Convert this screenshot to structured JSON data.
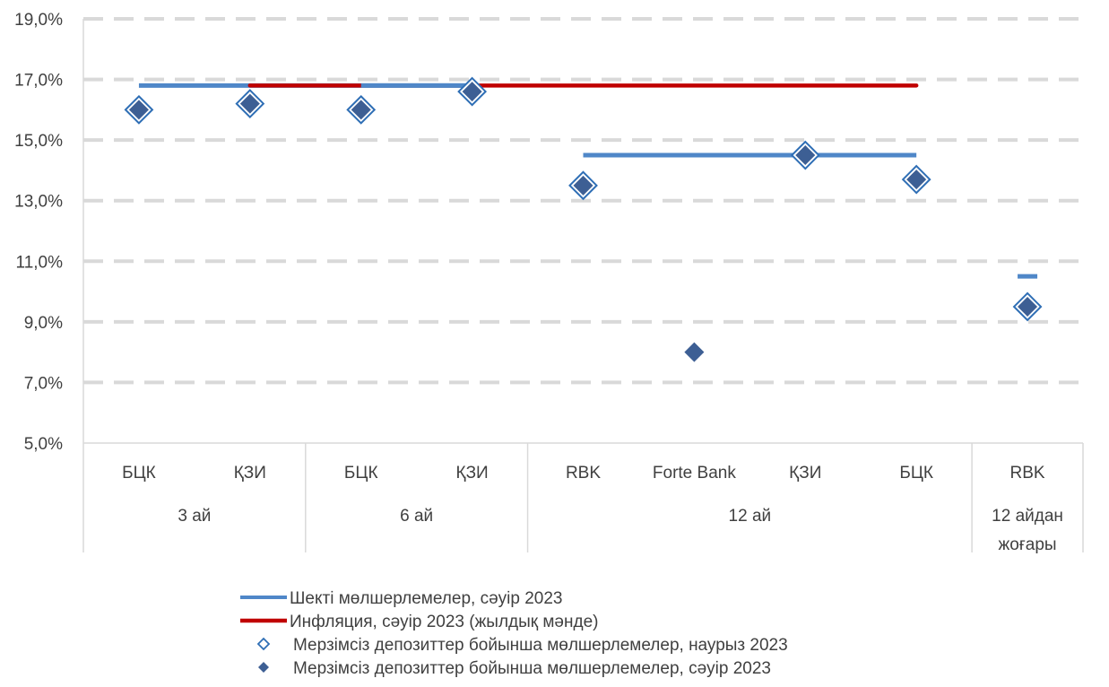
{
  "chart_data": {
    "type": "line",
    "ylim": [
      5,
      19
    ],
    "y_ticks": [
      "5,0%",
      "7,0%",
      "9,0%",
      "11,0%",
      "13,0%",
      "15,0%",
      "17,0%",
      "19,0%"
    ],
    "y_tick_values": [
      5,
      7,
      9,
      11,
      13,
      15,
      17,
      19
    ],
    "categories": [
      "БЦК",
      "ҚЗИ",
      "БЦК",
      "ҚЗИ",
      "RBK",
      "Forte Bank",
      "ҚЗИ",
      "БЦК",
      "RBK"
    ],
    "groups": [
      {
        "label": "3 ай",
        "span": [
          0,
          1
        ]
      },
      {
        "label": "6 ай",
        "span": [
          2,
          3
        ]
      },
      {
        "label": "12 ай",
        "span": [
          4,
          7
        ]
      },
      {
        "label_lines": [
          "12 айдан",
          "жоғары"
        ],
        "span": [
          8,
          8
        ]
      }
    ],
    "grid": true,
    "legend_position": "bottom",
    "series": [
      {
        "name": "Шекті мөлшерлемелер, сәуір 2023",
        "kind": "line",
        "color": "#4F87C8",
        "values": [
          16.8,
          16.8,
          16.8,
          16.8,
          14.5,
          14.5,
          14.5,
          14.5,
          10.5
        ]
      },
      {
        "name": "Инфляция, сәуір 2023 (жылдық мәнде)",
        "kind": "line",
        "color": "#C00000",
        "values": [
          16.8,
          16.8,
          16.8,
          16.8,
          16.8,
          16.8,
          16.8,
          16.8,
          null
        ]
      },
      {
        "name": "Мерзімсіз депозиттер бойынша мөлшерлемелер, наурыз 2023",
        "kind": "marker-open",
        "color": "#2E6EB5",
        "values": [
          16.0,
          16.2,
          16.0,
          16.6,
          13.5,
          null,
          14.5,
          13.7,
          9.5
        ]
      },
      {
        "name": "Мерзімсіз депозиттер бойынша мөлшерлемелер, сәуір 2023",
        "kind": "marker-filled",
        "color": "#3D5F94",
        "values": [
          16.0,
          16.2,
          16.0,
          16.6,
          13.5,
          8.0,
          14.5,
          13.7,
          9.5
        ]
      }
    ]
  }
}
